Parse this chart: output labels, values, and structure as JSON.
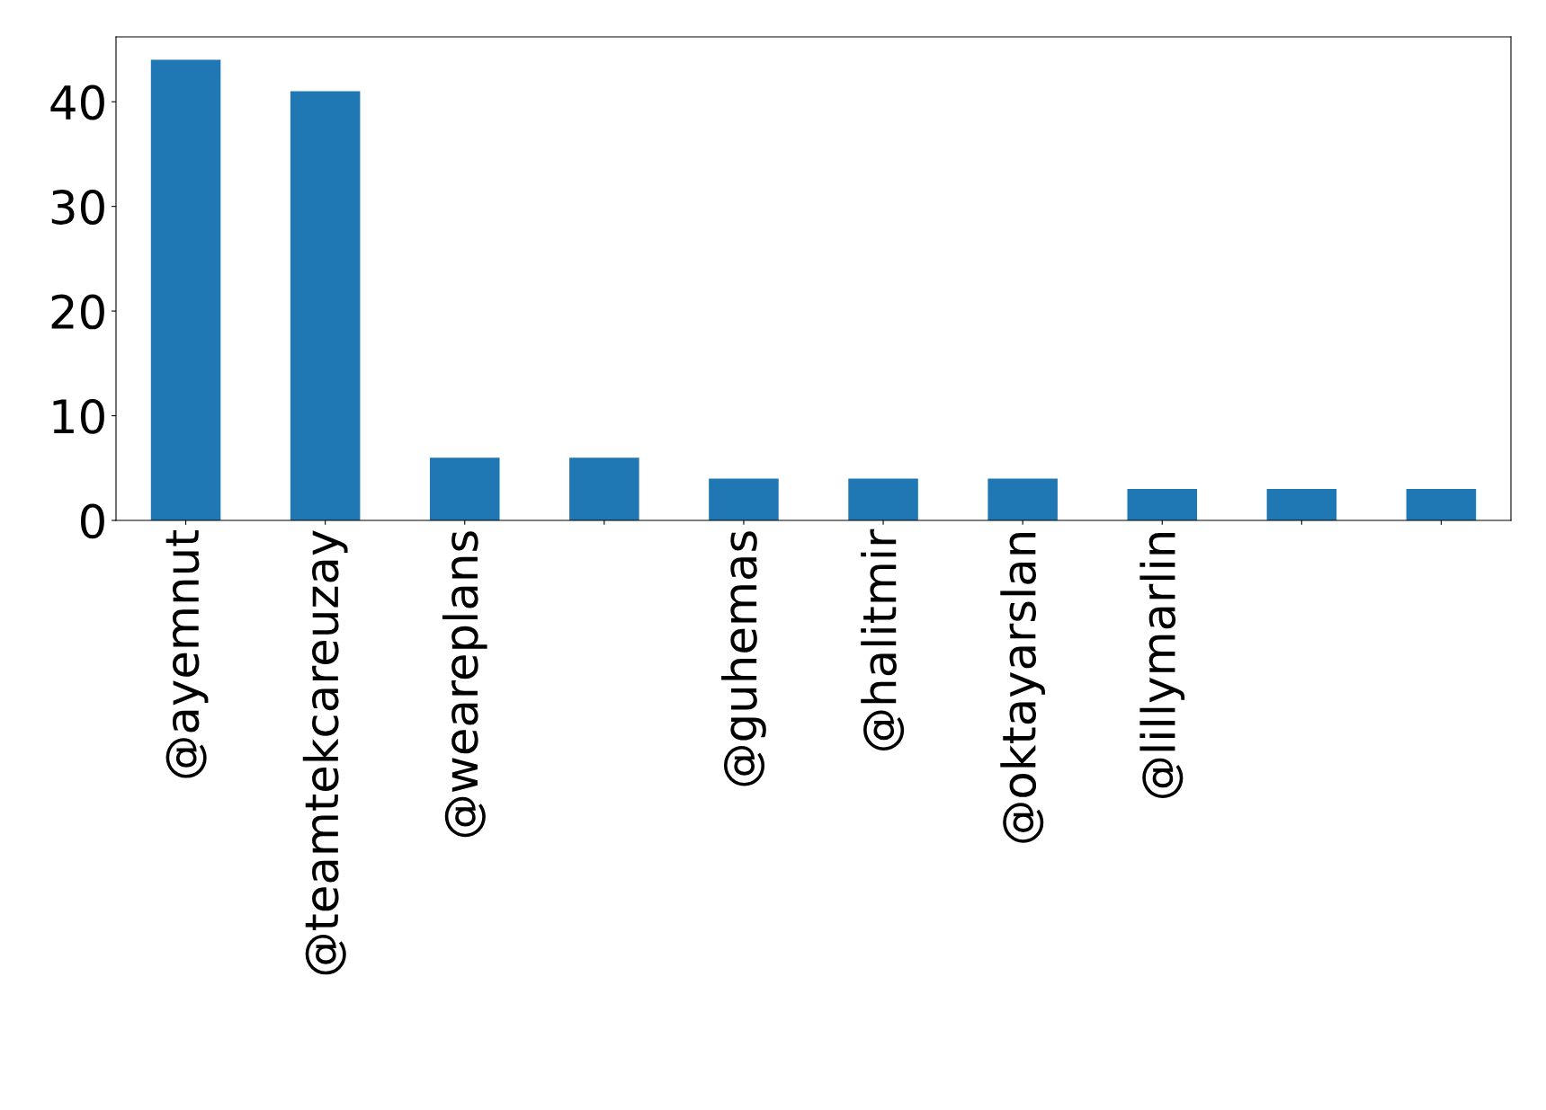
{
  "chart_data": {
    "type": "bar",
    "categories": [
      "@ayemnut",
      "@teamtekcareuzay",
      "@weareplans",
      null,
      "@guhemas",
      "@halitmir",
      "@oktayarslan",
      "@lillymarlin",
      null,
      null
    ],
    "values": [
      44,
      41,
      6,
      6,
      4,
      4,
      4,
      3,
      3,
      3
    ],
    "color": "#1f77b4",
    "ylim": [
      0,
      46.2
    ],
    "yticks": [
      0,
      10,
      20,
      30,
      40
    ],
    "grid": false,
    "legend": false
  }
}
